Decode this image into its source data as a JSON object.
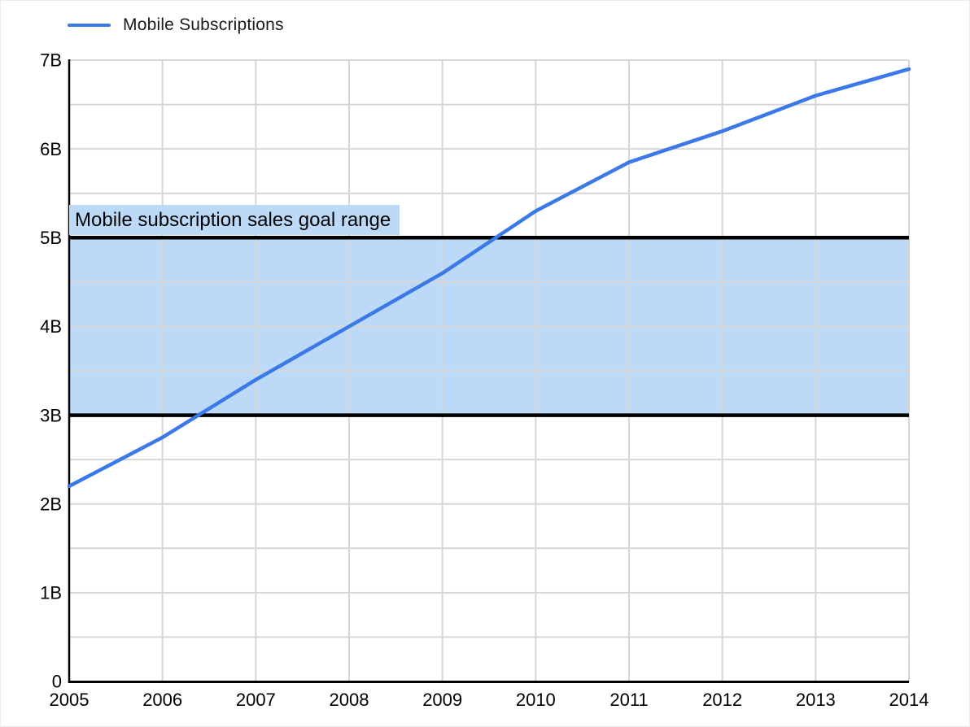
{
  "colors": {
    "line": "#3B78E8",
    "band_fill": "#BCDAF7",
    "band_border": "#000000",
    "grid": "#D6D6D6",
    "axis": "#000000",
    "text": "#000000"
  },
  "chart_data": {
    "type": "line",
    "title": "",
    "xlabel": "",
    "ylabel": "",
    "xlim": [
      2005,
      2014
    ],
    "ylim": [
      0,
      7
    ],
    "grid": true,
    "y_minor_step": 0.5,
    "legend_position": "top-left",
    "x": [
      2005,
      2006,
      2007,
      2008,
      2009,
      2010,
      2011,
      2012,
      2013,
      2014
    ],
    "x_tick_labels": [
      "2005",
      "2006",
      "2007",
      "2008",
      "2009",
      "2010",
      "2011",
      "2012",
      "2013",
      "2014"
    ],
    "y_tick_values": [
      0,
      1,
      2,
      3,
      4,
      5,
      6,
      7
    ],
    "y_tick_labels": [
      "0",
      "1B",
      "2B",
      "3B",
      "4B",
      "5B",
      "6B",
      "7B"
    ],
    "series": [
      {
        "name": "Mobile Subscriptions",
        "color": "#3B78E8",
        "values": [
          2.2,
          2.75,
          3.4,
          4.0,
          4.6,
          5.3,
          5.85,
          6.2,
          6.6,
          6.9
        ]
      }
    ],
    "band": {
      "label": "Mobile subscription sales goal range",
      "from": 3,
      "to": 5,
      "fill": "#BCDAF7",
      "border_color": "#000000"
    }
  }
}
